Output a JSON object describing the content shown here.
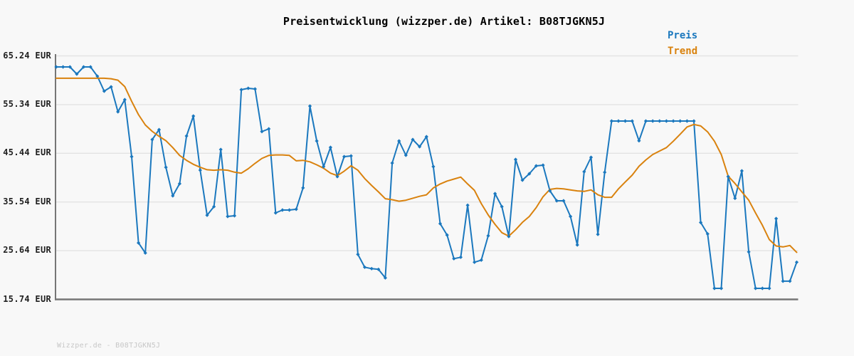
{
  "title": "Preisentwicklung (wizzper.de) Artikel: B08TJGKN5J",
  "watermark": "Wizzper.de - B08TJGKN5J",
  "legend": {
    "items": [
      {
        "label": "Preis",
        "color": "#1b78be"
      },
      {
        "label": "Trend",
        "color": "#d9820e"
      }
    ]
  },
  "colors": {
    "background": "#f8f8f8",
    "grid": "#e3e3e3",
    "axis": "#767676",
    "tick_text": "#1f1f1f",
    "title_text": "#000000",
    "watermark_text": "#c7c7c7",
    "price": "#1b78be",
    "trend": "#d9820e"
  },
  "chart_data": {
    "type": "line",
    "title": "Preisentwicklung (wizzper.de) Artikel: B08TJGKN5J",
    "xlabel": "",
    "ylabel": "",
    "x_tick_labels_visible": false,
    "grid": true,
    "legend_position": "top-right",
    "ylim": [
      15.74,
      65.24
    ],
    "currency": "EUR",
    "y_ticks": [
      {
        "value": 65.24,
        "label": "65.24 EUR"
      },
      {
        "value": 55.34,
        "label": "55.34 EUR"
      },
      {
        "value": 45.44,
        "label": "45.44 EUR"
      },
      {
        "value": 35.54,
        "label": "35.54 EUR"
      },
      {
        "value": 25.64,
        "label": "25.64 EUR"
      },
      {
        "value": 15.74,
        "label": "15.74 EUR"
      }
    ],
    "series": [
      {
        "name": "Preis",
        "color": "#1b78be",
        "markers": true,
        "values": [
          62.99,
          62.99,
          62.99,
          61.55,
          62.99,
          62.99,
          61.11,
          58.07,
          58.94,
          53.88,
          56.34,
          44.76,
          27.23,
          25.18,
          48.23,
          50.25,
          42.59,
          36.8,
          39.26,
          48.95,
          53.01,
          42.01,
          32.85,
          34.6,
          46.21,
          32.6,
          32.75,
          58.36,
          58.65,
          58.51,
          49.86,
          50.41,
          33.33,
          33.91,
          33.91,
          34.06,
          38.4,
          55.03,
          47.94,
          42.73,
          46.64,
          40.7,
          44.76,
          44.9,
          24.89,
          22.28,
          21.99,
          21.85,
          20.11,
          43.45,
          47.94,
          45.05,
          48.23,
          46.78,
          48.81,
          42.73,
          31.14,
          28.82,
          24.02,
          24.31,
          34.89,
          23.3,
          23.73,
          28.68,
          37.23,
          34.6,
          28.53,
          44.18,
          39.98,
          41.28,
          42.88,
          43.02,
          37.81,
          35.78,
          35.78,
          32.6,
          26.81,
          41.71,
          44.61,
          28.97,
          41.57,
          51.99,
          51.99,
          51.99,
          51.99,
          47.99,
          51.99,
          51.99,
          51.99,
          51.99,
          51.99,
          51.99,
          51.99,
          51.99,
          31.37,
          29.06,
          17.99,
          17.99,
          40.7,
          36.29,
          41.86,
          25.4,
          17.99,
          17.99,
          17.99,
          32.17,
          19.44,
          19.44,
          23.3
        ]
      },
      {
        "name": "Trend",
        "color": "#d9820e",
        "markers": false,
        "values": [
          60.7,
          60.7,
          60.7,
          60.7,
          60.7,
          60.7,
          60.7,
          60.7,
          60.6,
          60.3,
          59.0,
          56.0,
          53.3,
          51.2,
          49.9,
          48.9,
          48.0,
          46.6,
          45.0,
          44.0,
          43.2,
          42.6,
          42.1,
          42.0,
          42.1,
          42.0,
          41.6,
          41.4,
          42.3,
          43.4,
          44.4,
          45.0,
          45.1,
          45.1,
          45.0,
          43.9,
          44.0,
          43.7,
          43.1,
          42.4,
          41.4,
          40.9,
          41.8,
          42.9,
          42.0,
          40.3,
          38.9,
          37.6,
          36.2,
          36.0,
          35.7,
          35.9,
          36.3,
          36.7,
          37.0,
          38.4,
          39.2,
          39.8,
          40.2,
          40.6,
          39.2,
          37.9,
          35.2,
          32.9,
          31.0,
          29.3,
          28.6,
          29.9,
          31.4,
          32.6,
          34.4,
          36.6,
          38.1,
          38.3,
          38.2,
          38.0,
          37.8,
          37.7,
          38.0,
          37.0,
          36.5,
          36.5,
          38.2,
          39.6,
          41.0,
          42.8,
          44.1,
          45.2,
          45.9,
          46.6,
          47.9,
          49.3,
          50.8,
          51.3,
          51.0,
          49.8,
          47.9,
          45.2,
          40.8,
          39.3,
          37.6,
          35.9,
          33.3,
          30.8,
          27.9,
          26.6,
          26.4,
          26.7,
          25.3
        ]
      }
    ]
  }
}
